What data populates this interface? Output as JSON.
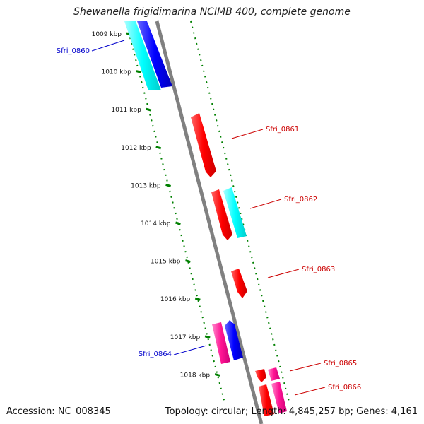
{
  "header": {
    "title": "Shewanella frigidimarina NCIMB 400, complete genome"
  },
  "footer": {
    "accession": "Accession: NC_008345",
    "summary": "Topology: circular; Length: 4,845,257 bp; Genes: 4,161"
  },
  "map": {
    "ticks": [
      "1009 kbp",
      "1010 kbp",
      "1011 kbp",
      "1012 kbp",
      "1013 kbp",
      "1014 kbp",
      "1015 kbp",
      "1016 kbp",
      "1017 kbp",
      "1018 kbp"
    ],
    "genes": [
      {
        "label": "Sfri_0860",
        "strand": "reverse",
        "color": "#0000cc"
      },
      {
        "label": "Sfri_0861",
        "strand": "forward",
        "color": "#cc0000"
      },
      {
        "label": "Sfri_0862",
        "strand": "forward",
        "color": "#cc0000"
      },
      {
        "label": "Sfri_0863",
        "strand": "forward",
        "color": "#cc0000"
      },
      {
        "label": "Sfri_0864",
        "strand": "reverse",
        "color": "#0000cc"
      },
      {
        "label": "Sfri_0865",
        "strand": "forward",
        "color": "#cc0000"
      },
      {
        "label": "Sfri_0866",
        "strand": "forward",
        "color": "#cc0000"
      }
    ],
    "feature_colors": {
      "forward_cds": "#ff0000",
      "reverse_cds": "#0000ff",
      "rna": "#00ffff",
      "other": "#ff1493",
      "backbone": "#808080",
      "ruler": "#008000"
    }
  }
}
